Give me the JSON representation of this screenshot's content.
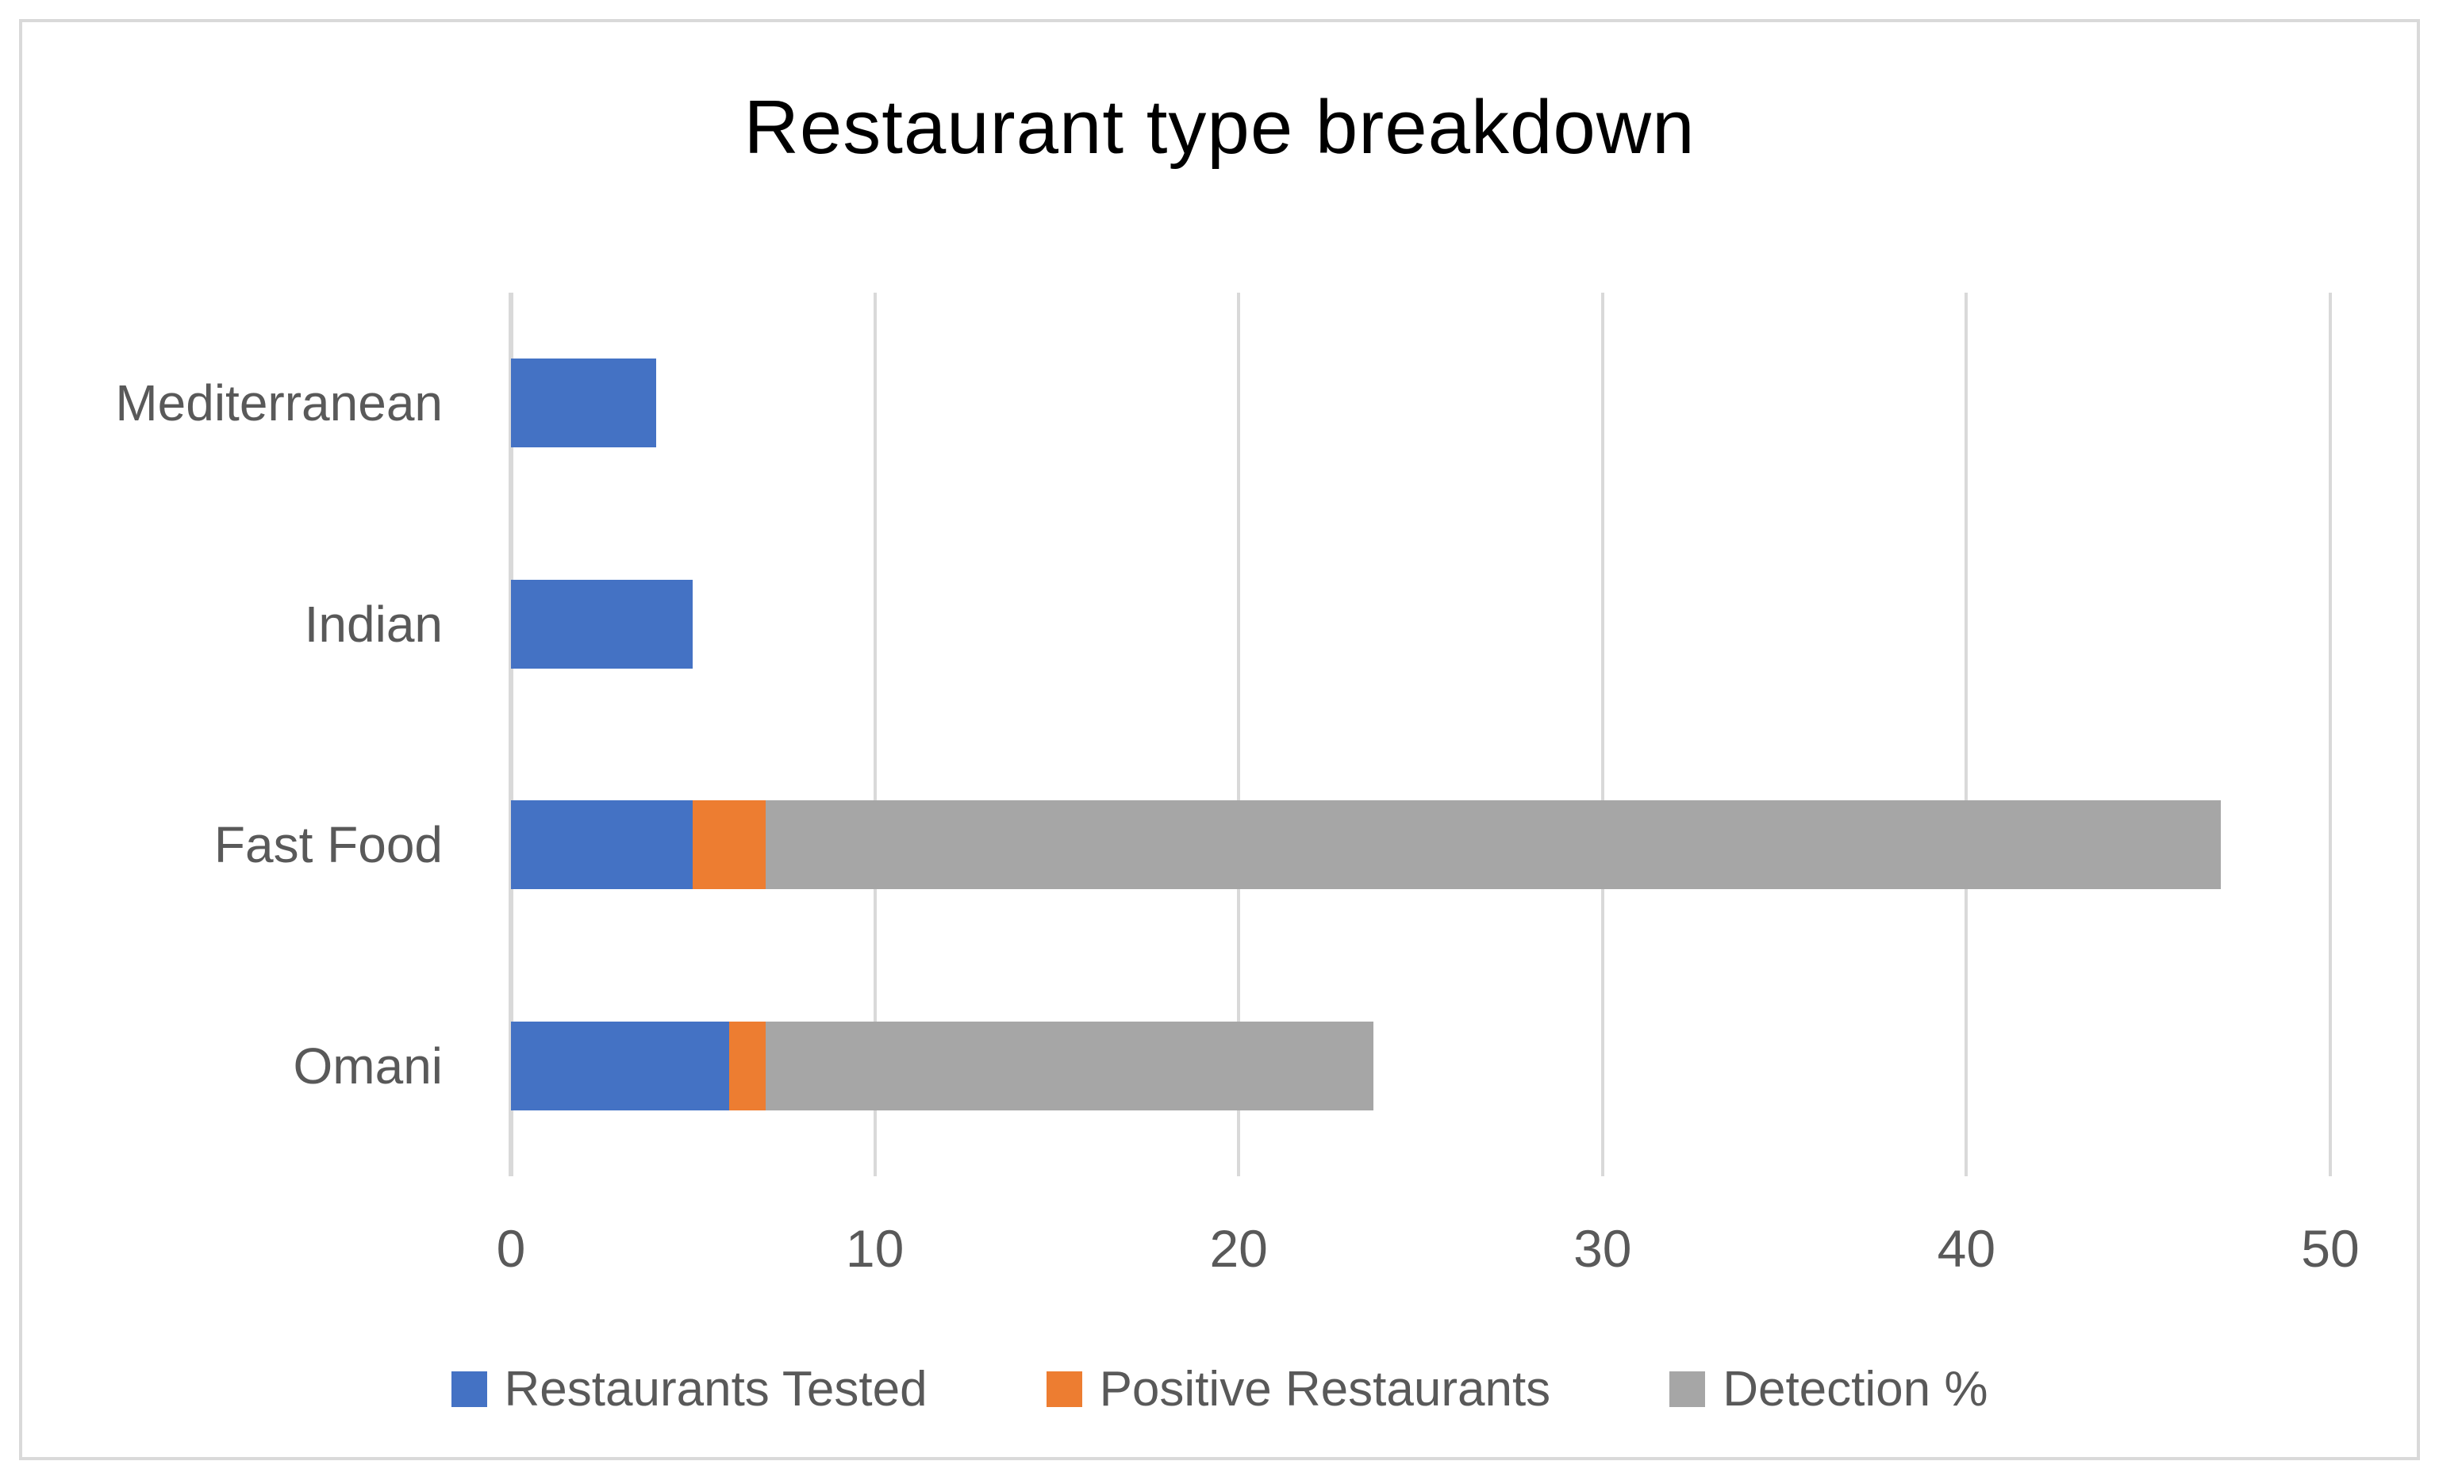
{
  "chart_data": {
    "type": "bar",
    "orientation": "horizontal",
    "stacked": true,
    "title": "Restaurant type breakdown",
    "categories": [
      "Mediterranean",
      "Indian",
      "Fast Food",
      "Omani"
    ],
    "series": [
      {
        "name": "Restaurants Tested",
        "color": "#4472C4",
        "values": [
          4,
          5,
          5,
          6
        ]
      },
      {
        "name": "Positive Restaurants",
        "color": "#ED7D31",
        "values": [
          0,
          0,
          2,
          1
        ]
      },
      {
        "name": "Detection %",
        "color": "#A6A6A6",
        "values": [
          0,
          0,
          40,
          16.7
        ]
      }
    ],
    "xlim": [
      0,
      50
    ],
    "xticks": [
      0,
      10,
      20,
      30,
      40,
      50
    ],
    "grid": true,
    "legend_position": "bottom"
  },
  "style": {
    "gridline_color": "#D9D9D9",
    "axis_line_color": "#D9D9D9",
    "frame_border_color": "#D9D9D9",
    "label_color": "#595959",
    "title_color": "#000000",
    "background": "#FFFFFF"
  }
}
